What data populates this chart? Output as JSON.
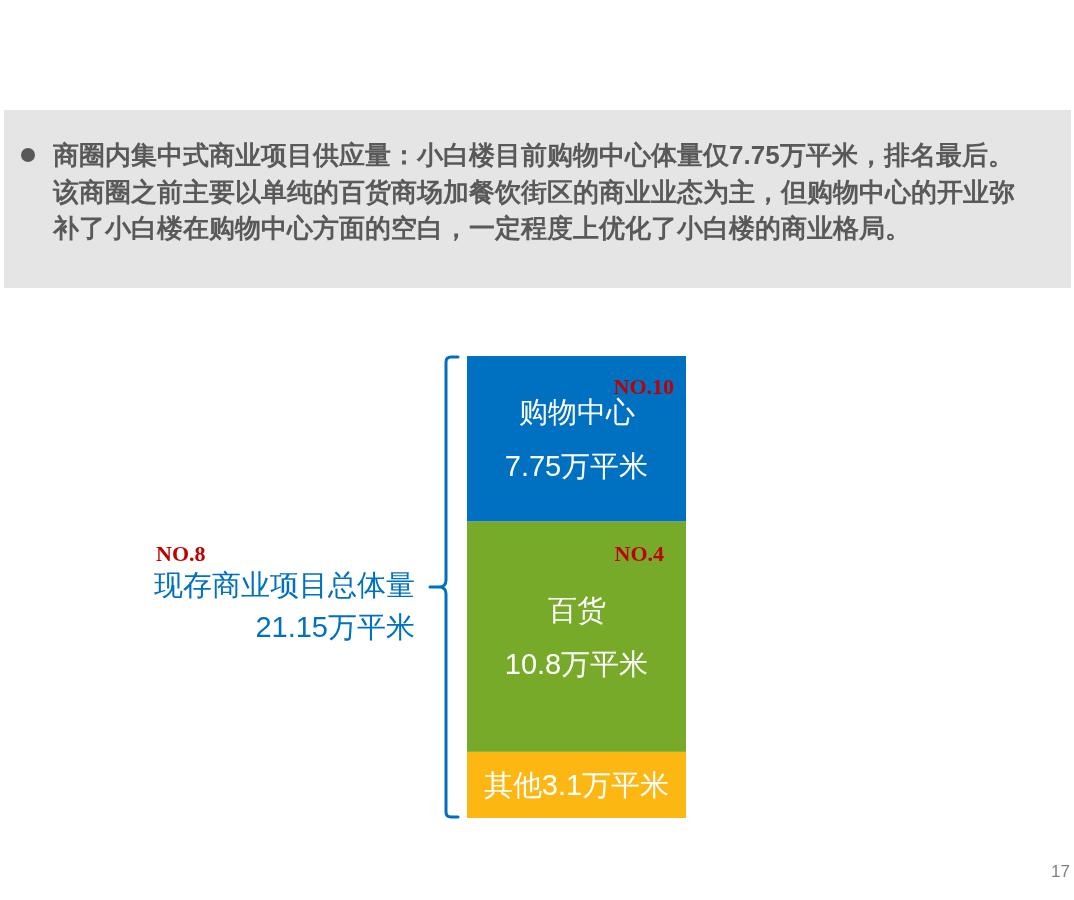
{
  "chart_data": {
    "type": "bar",
    "stacked": true,
    "title": "商圈内集中式商业项目供应量：小白楼目前购物中心体量仅7.75万平米，排名最后。该商圈之前主要以单纯的百货商场加餐饮街区的商业业态为主，但购物中心的开业弥补了小白楼在购物中心方面的空白，一定程度上优化了小白楼的商业格局。",
    "categories": [
      null
    ],
    "series": [
      {
        "name": "其他",
        "color": "#fdb713",
        "values": [
          3.1
        ],
        "value_labels": [
          "3.1万平米"
        ]
      },
      {
        "name": "百货",
        "color": "#78aa2a",
        "values": [
          10.8
        ],
        "value_labels": [
          "10.8万平米"
        ]
      },
      {
        "name": "购物中心",
        "color": "#0070c0",
        "values": [
          7.75
        ],
        "value_labels": [
          "7.75万平米"
        ]
      }
    ],
    "annotations": [
      "NO.10",
      "NO.4",
      "NO.8",
      "现存商业项目总体量",
      "21.15万平米",
      "17"
    ]
  }
}
